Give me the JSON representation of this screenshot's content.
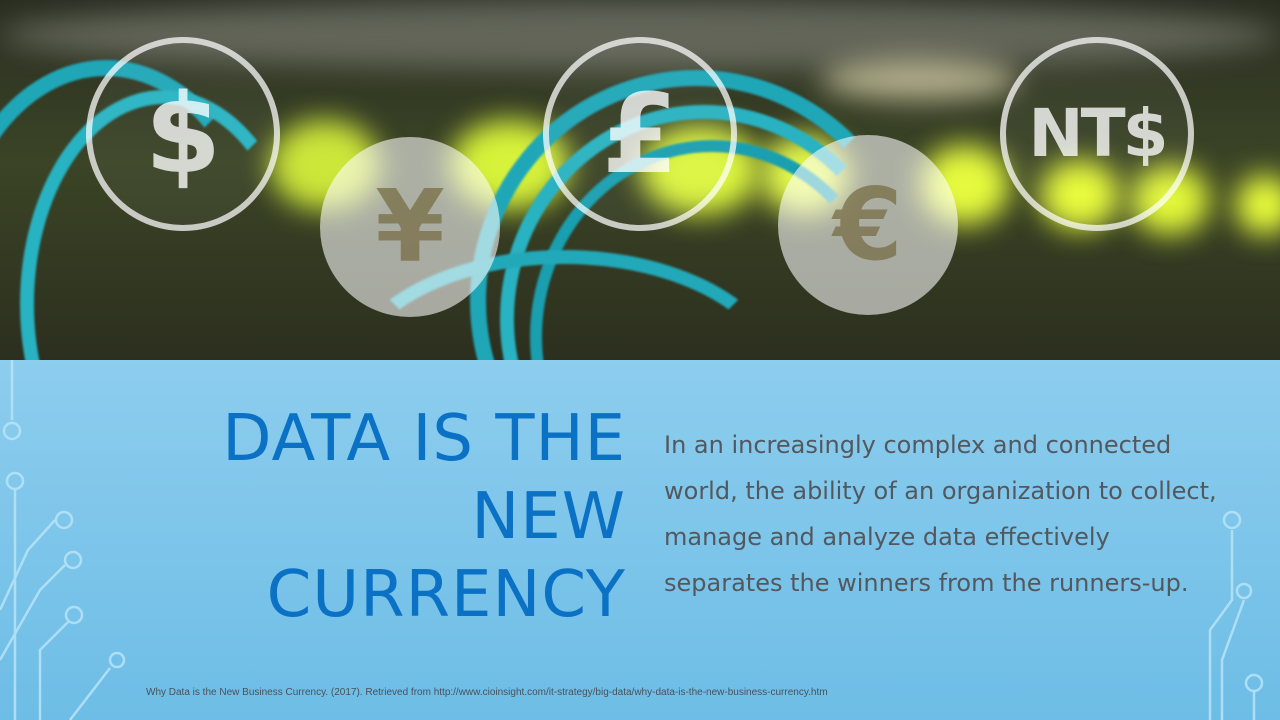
{
  "hero": {
    "currency_icons": [
      {
        "name": "dollar",
        "symbol": "$"
      },
      {
        "name": "yen",
        "symbol": "¥"
      },
      {
        "name": "pound",
        "symbol": "£"
      },
      {
        "name": "euro",
        "symbol": "€"
      },
      {
        "name": "new-taiwan-dollar",
        "symbol": "NT$"
      }
    ]
  },
  "slide": {
    "title_line1": "DATA IS THE",
    "title_line2": "NEW",
    "title_line3": "CURRENCY",
    "body": "In an increasingly complex and connected world, the ability of an organization to collect, manage and analyze data effectively separates the winners from the runners-up.",
    "citation": "Why Data is the New Business Currency. (2017). Retrieved from http://www.cioinsight.com/it-strategy/big-data/why-data-is-the-new-business-currency.htm"
  },
  "colors": {
    "title": "#0b71c4",
    "body_text": "#53585e",
    "panel": "#7cc4e8",
    "cable": "#1fa7b8",
    "led": "#d7f23a"
  }
}
